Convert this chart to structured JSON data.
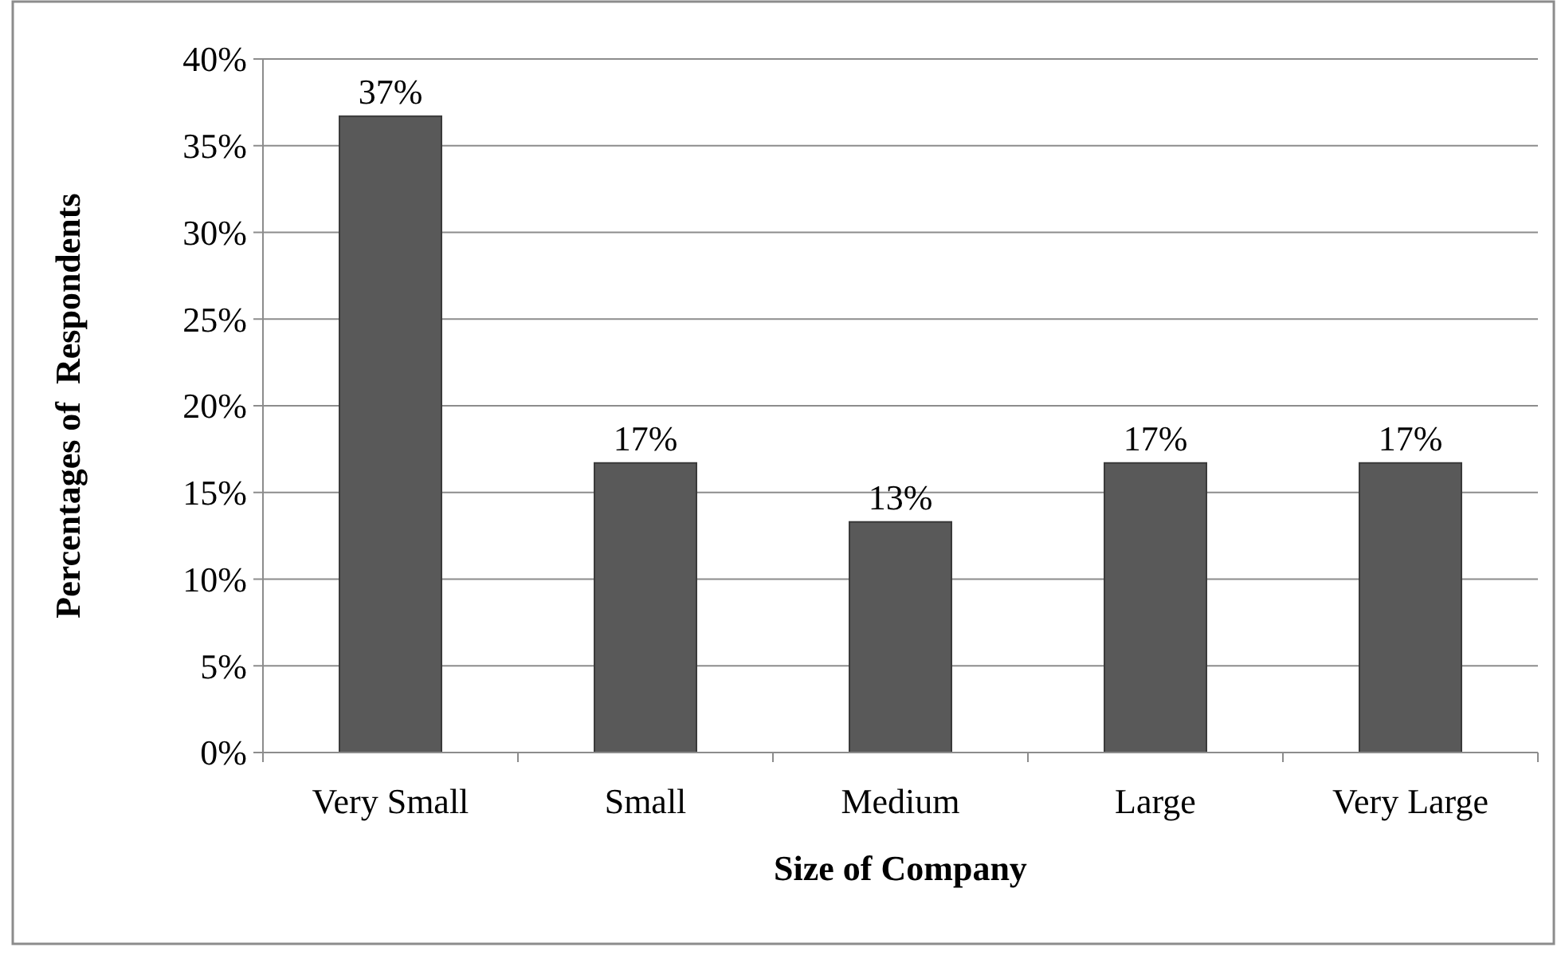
{
  "chart_data": {
    "type": "bar",
    "xlabel": "Size of Company",
    "ylabel": "Percentages of  Respondents",
    "categories": [
      "Very Small",
      "Small",
      "Medium",
      "Large",
      "Very Large"
    ],
    "values": [
      36.7,
      16.7,
      13.3,
      16.7,
      16.7
    ],
    "value_labels": [
      "37%",
      "17%",
      "13%",
      "17%",
      "17%"
    ],
    "color": "#595959",
    "ylim": [
      0,
      40
    ],
    "yticks": [
      {
        "value": 0,
        "label": "0%"
      },
      {
        "value": 5,
        "label": "5%"
      },
      {
        "value": 10,
        "label": "10%"
      },
      {
        "value": 15,
        "label": "15%"
      },
      {
        "value": 20,
        "label": "20%"
      },
      {
        "value": 25,
        "label": "25%"
      },
      {
        "value": 30,
        "label": "30%"
      },
      {
        "value": 35,
        "label": "35%"
      },
      {
        "value": 40,
        "label": "40%"
      }
    ],
    "grid": "y"
  }
}
